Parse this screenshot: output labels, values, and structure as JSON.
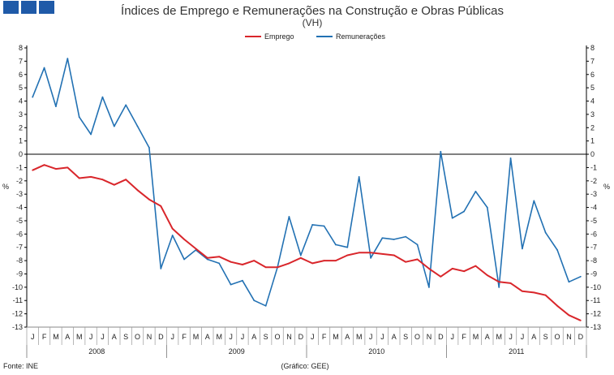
{
  "header": {
    "logo_colors": [
      "#1f5aa8",
      "#1f5aa8",
      "#1f5aa8"
    ]
  },
  "chart_data": {
    "type": "line",
    "title": "Índices de Emprego e Remunerações na Construção e Obras Públicas",
    "subtitle": "(VH)",
    "ylabel_left": "%",
    "ylabel_right": "%",
    "ylim": [
      -13,
      8
    ],
    "yticks": [
      8,
      7,
      6,
      5,
      4,
      3,
      2,
      1,
      0,
      -1,
      -2,
      -3,
      -4,
      -5,
      -6,
      -7,
      -8,
      -9,
      -10,
      -11,
      -12,
      -13
    ],
    "legend_position": "top-center",
    "grid": false,
    "month_labels": [
      "J",
      "F",
      "M",
      "A",
      "M",
      "J",
      "J",
      "A",
      "S",
      "O",
      "N",
      "D",
      "J",
      "F",
      "M",
      "A",
      "M",
      "J",
      "J",
      "A",
      "S",
      "O",
      "N",
      "D",
      "J",
      "F",
      "M",
      "A",
      "M",
      "J",
      "J",
      "A",
      "S",
      "O",
      "N",
      "D",
      "J",
      "F",
      "M",
      "A",
      "M",
      "J",
      "J",
      "A",
      "S",
      "O",
      "N",
      "D"
    ],
    "years": [
      "2008",
      "2009",
      "2010",
      "2011"
    ],
    "series": [
      {
        "name": "Emprego",
        "color": "#d9262b",
        "values": [
          -1.2,
          -0.8,
          -1.1,
          -1.0,
          -1.8,
          -1.7,
          -1.9,
          -2.3,
          -1.9,
          -2.7,
          -3.4,
          -3.9,
          -5.6,
          -6.4,
          -7.1,
          -7.8,
          -7.7,
          -8.1,
          -8.3,
          -8.0,
          -8.5,
          -8.5,
          -8.2,
          -7.8,
          -8.2,
          -8.0,
          -8.0,
          -7.6,
          -7.4,
          -7.4,
          -7.5,
          -7.6,
          -8.1,
          -7.9,
          -8.6,
          -9.2,
          -8.6,
          -8.8,
          -8.4,
          -9.1,
          -9.6,
          -9.7,
          -10.3,
          -10.4,
          -10.6,
          -11.4,
          -12.1,
          -12.5
        ]
      },
      {
        "name": "Remunerações",
        "color": "#2271b3",
        "values": [
          4.3,
          6.5,
          3.6,
          7.2,
          2.8,
          1.5,
          4.3,
          2.1,
          3.7,
          2.1,
          0.5,
          -8.6,
          -6.1,
          -7.9,
          -7.2,
          -7.9,
          -8.2,
          -9.8,
          -9.5,
          -11.0,
          -11.4,
          -8.5,
          -4.7,
          -7.6,
          -5.3,
          -5.4,
          -6.8,
          -7.0,
          -1.7,
          -7.8,
          -6.3,
          -6.4,
          -6.2,
          -6.8,
          -10.0,
          0.2,
          -4.8,
          -4.3,
          -2.8,
          -4.0,
          -10.0,
          -0.3,
          -7.1,
          -3.5,
          -5.9,
          -7.2,
          -9.6,
          -9.2
        ]
      }
    ]
  },
  "footer": {
    "source": "Fonte: INE",
    "credit": "(Gráfico: GEE)"
  }
}
